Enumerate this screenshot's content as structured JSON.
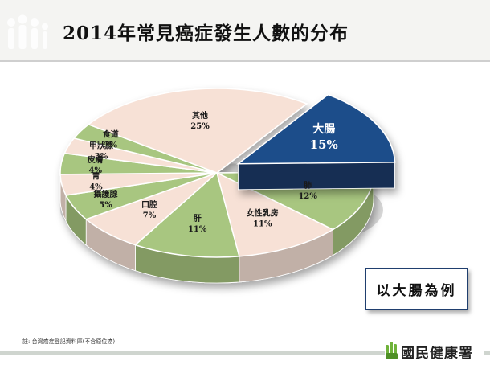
{
  "slide": {
    "title": "2014年常見癌症發生人數的分布",
    "callout": "以大腸為例",
    "footnote": "註: 台灣癌症登記資料庫(不含原位癌)",
    "footer_logo_text": "國民健康署",
    "header_logo_icon": "people-figures-icon",
    "footer_logo_icon": "hand-green-icon"
  },
  "colors": {
    "green": "#a8c680",
    "peach": "#f7e1d6",
    "navy": "#1f4d8a",
    "header_bg": "#f4f4f2"
  },
  "chart_data": {
    "type": "pie",
    "title": "",
    "slices": [
      {
        "label": "大腸",
        "value": 15,
        "value_label": "15%",
        "color": "#1f4d8a",
        "exploded": true
      },
      {
        "label": "肺",
        "value": 12,
        "value_label": "12%",
        "color": "#a8c680"
      },
      {
        "label": "女性乳房",
        "value": 11,
        "value_label": "11%",
        "color": "#f7e1d6"
      },
      {
        "label": "肝",
        "value": 11,
        "value_label": "11%",
        "color": "#a8c680"
      },
      {
        "label": "口腔",
        "value": 7,
        "value_label": "7%",
        "color": "#f7e1d6"
      },
      {
        "label": "攝護腺",
        "value": 5,
        "value_label": "5%",
        "color": "#a8c680"
      },
      {
        "label": "胃",
        "value": 4,
        "value_label": "4%",
        "color": "#f7e1d6"
      },
      {
        "label": "皮膚",
        "value": 4,
        "value_label": "4%",
        "color": "#a8c680"
      },
      {
        "label": "甲狀腺",
        "value": 3,
        "value_label": "3%",
        "color": "#f7e1d6"
      },
      {
        "label": "食道",
        "value": 3,
        "value_label": "3%",
        "color": "#a8c680"
      },
      {
        "label": "其他",
        "value": 25,
        "value_label": "25%",
        "color": "#f7e1d6"
      }
    ]
  }
}
